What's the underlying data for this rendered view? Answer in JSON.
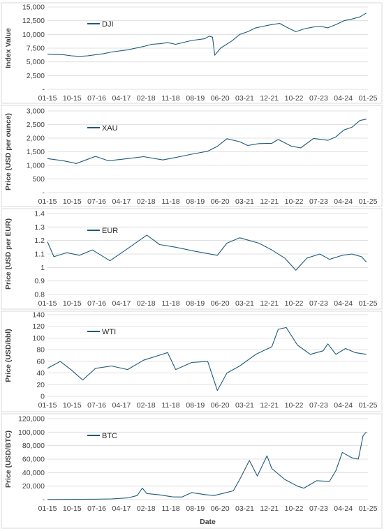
{
  "colors": {
    "series": "#1f5a7a",
    "grid": "#d9d9d9",
    "text": "#404040"
  },
  "x_axis_label": "Date",
  "chart_data": [
    {
      "type": "line",
      "series_name": "DJI",
      "ylabel": "Index Value",
      "ylim": [
        0,
        15000
      ],
      "yticks": [
        "-",
        "2,500",
        "5,000",
        "7,500",
        "10,000",
        "12,500",
        "15,000"
      ],
      "xticks": [
        "01-15",
        "10-15",
        "07-16",
        "04-17",
        "02-18",
        "11-18",
        "08-19",
        "06-20",
        "03-21",
        "12-21",
        "10-22",
        "07-23",
        "04-24",
        "01-25"
      ],
      "x": [
        2015.0,
        2015.5,
        2015.75,
        2016.0,
        2016.25,
        2016.5,
        2016.75,
        2017.0,
        2017.5,
        2018.0,
        2018.25,
        2018.5,
        2018.75,
        2019.0,
        2019.5,
        2019.9,
        2020.05,
        2020.15,
        2020.22,
        2020.4,
        2020.75,
        2021.0,
        2021.25,
        2021.5,
        2021.75,
        2022.0,
        2022.25,
        2022.5,
        2022.75,
        2023.0,
        2023.25,
        2023.5,
        2023.75,
        2024.0,
        2024.25,
        2024.5,
        2024.75,
        2024.95
      ],
      "y": [
        6400,
        6300,
        6100,
        6000,
        6100,
        6300,
        6500,
        6800,
        7200,
        7800,
        8200,
        8300,
        8500,
        8200,
        8900,
        9200,
        9700,
        9500,
        6200,
        7500,
        8800,
        10000,
        10500,
        11200,
        11500,
        11800,
        12000,
        11200,
        10500,
        11000,
        11300,
        11500,
        11200,
        11800,
        12500,
        12800,
        13200,
        13900
      ],
      "legend_position": "top-left"
    },
    {
      "type": "line",
      "series_name": "XAU",
      "ylabel": "Price (USD per ounce)",
      "ylim": [
        0,
        3000
      ],
      "yticks": [
        "-",
        "500",
        "1,000",
        "1,500",
        "2,000",
        "2,500",
        "3,000"
      ],
      "xticks": [
        "01-15",
        "10-15",
        "07-16",
        "04-17",
        "02-18",
        "11-18",
        "08-19",
        "06-20",
        "03-21",
        "12-21",
        "10-22",
        "07-23",
        "04-24",
        "01-25"
      ],
      "x": [
        2015.0,
        2015.5,
        2015.9,
        2016.5,
        2016.9,
        2017.5,
        2018.0,
        2018.6,
        2019.0,
        2019.5,
        2020.0,
        2020.3,
        2020.6,
        2021.0,
        2021.25,
        2021.6,
        2022.0,
        2022.2,
        2022.6,
        2022.9,
        2023.3,
        2023.75,
        2024.0,
        2024.25,
        2024.5,
        2024.75,
        2024.95
      ],
      "y": [
        1250,
        1170,
        1070,
        1330,
        1170,
        1250,
        1320,
        1200,
        1290,
        1410,
        1520,
        1700,
        1980,
        1870,
        1730,
        1800,
        1810,
        1950,
        1710,
        1640,
        1990,
        1920,
        2050,
        2300,
        2400,
        2650,
        2700
      ],
      "legend_position": "top-left"
    },
    {
      "type": "line",
      "series_name": "EUR",
      "ylabel": "Price (USD per EUR)",
      "ylim": [
        0.8,
        1.4
      ],
      "yticks": [
        "0.8",
        "0.9",
        "1",
        "1.1",
        "1.2",
        "1.3",
        "1.4"
      ],
      "xticks": [
        "01-15",
        "10-15",
        "07-16",
        "04-17",
        "02-18",
        "11-18",
        "08-19",
        "06-20",
        "03-21",
        "12-21",
        "10-22",
        "07-23",
        "04-24",
        "01-25"
      ],
      "x": [
        2015.0,
        2015.2,
        2015.6,
        2016.0,
        2016.4,
        2016.95,
        2017.5,
        2018.1,
        2018.5,
        2019.0,
        2019.6,
        2020.3,
        2020.6,
        2021.0,
        2021.3,
        2021.6,
        2022.0,
        2022.4,
        2022.75,
        2023.1,
        2023.5,
        2023.8,
        2024.2,
        2024.5,
        2024.8,
        2024.95
      ],
      "y": [
        1.19,
        1.08,
        1.11,
        1.09,
        1.13,
        1.05,
        1.14,
        1.24,
        1.17,
        1.15,
        1.12,
        1.09,
        1.18,
        1.22,
        1.2,
        1.18,
        1.13,
        1.07,
        0.98,
        1.07,
        1.1,
        1.06,
        1.09,
        1.1,
        1.08,
        1.04
      ],
      "legend_position": "top-left"
    },
    {
      "type": "line",
      "series_name": "WTI",
      "ylabel": "Price (USD/bbl)",
      "ylim": [
        0,
        140
      ],
      "yticks": [
        "0",
        "20",
        "40",
        "60",
        "80",
        "100",
        "120",
        "140"
      ],
      "xticks": [
        "01-15",
        "10-15",
        "07-16",
        "04-17",
        "02-18",
        "11-18",
        "08-19",
        "06-20",
        "03-21",
        "12-21",
        "10-22",
        "07-23",
        "04-24",
        "01-25"
      ],
      "x": [
        2015.0,
        2015.4,
        2015.75,
        2016.1,
        2016.5,
        2017.0,
        2017.5,
        2018.0,
        2018.75,
        2019.0,
        2019.5,
        2020.0,
        2020.3,
        2020.6,
        2021.0,
        2021.5,
        2022.0,
        2022.2,
        2022.45,
        2022.8,
        2023.2,
        2023.6,
        2023.75,
        2024.0,
        2024.3,
        2024.6,
        2024.95
      ],
      "y": [
        48,
        60,
        45,
        28,
        48,
        52,
        46,
        62,
        75,
        46,
        58,
        60,
        10,
        40,
        52,
        72,
        85,
        115,
        118,
        88,
        72,
        78,
        90,
        72,
        82,
        75,
        72
      ],
      "legend_position": "top-left"
    },
    {
      "type": "line",
      "series_name": "BTC",
      "ylabel": "Price (USD/BTC)",
      "ylim": [
        0,
        120000
      ],
      "yticks": [
        "-",
        "20,000",
        "40,000",
        "60,000",
        "80,000",
        "100,000",
        "120,000"
      ],
      "xticks": [
        "01-15",
        "10-15",
        "07-16",
        "04-17",
        "02-18",
        "11-18",
        "08-19",
        "06-20",
        "03-21",
        "12-21",
        "10-22",
        "07-23",
        "04-24",
        "01-25"
      ],
      "x": [
        2015.0,
        2016.0,
        2016.5,
        2017.0,
        2017.5,
        2017.8,
        2017.96,
        2018.1,
        2018.5,
        2018.9,
        2019.2,
        2019.5,
        2019.9,
        2020.2,
        2020.5,
        2020.8,
        2021.0,
        2021.3,
        2021.55,
        2021.85,
        2022.0,
        2022.4,
        2022.8,
        2023.0,
        2023.4,
        2023.8,
        2024.0,
        2024.2,
        2024.5,
        2024.7,
        2024.85,
        2024.95
      ],
      "y": [
        250,
        400,
        650,
        1000,
        2500,
        6000,
        17000,
        9000,
        7000,
        4000,
        3800,
        10500,
        7500,
        6000,
        9500,
        13000,
        30000,
        58000,
        35000,
        65000,
        46000,
        30000,
        20000,
        17000,
        28000,
        27000,
        43000,
        70000,
        62000,
        60000,
        95000,
        100000
      ],
      "legend_position": "top-left"
    }
  ]
}
